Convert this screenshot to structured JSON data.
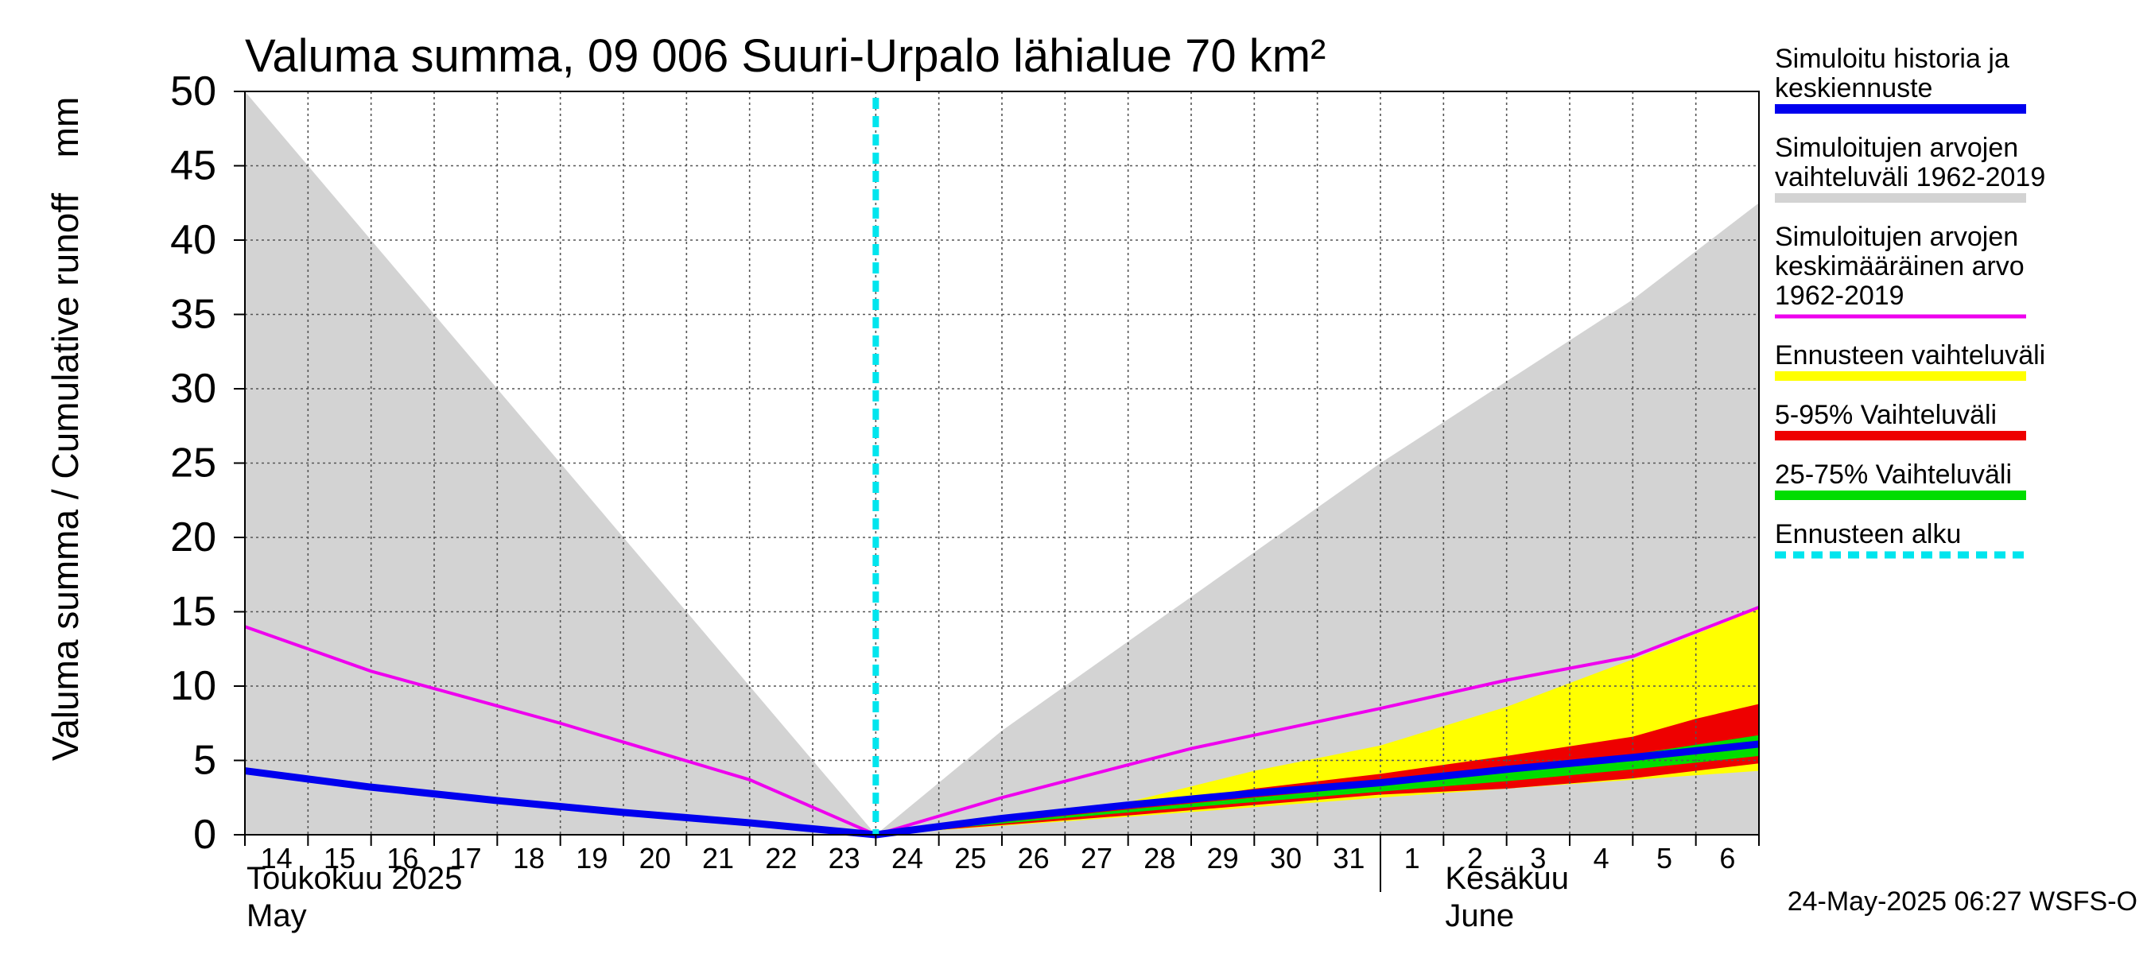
{
  "chart_data": {
    "type": "area",
    "title": "Valuma summa, 09 006 Suuri-Urpalo lähialue 70 km²",
    "ylabel_left": "Valuma summa / Cumulative runoff",
    "ylabel_unit": "mm",
    "ylim": [
      0,
      50
    ],
    "yticks": [
      0,
      5,
      10,
      15,
      20,
      25,
      30,
      35,
      40,
      45,
      50
    ],
    "x_day_labels": [
      "14",
      "15",
      "16",
      "17",
      "18",
      "19",
      "20",
      "21",
      "22",
      "23",
      "24",
      "25",
      "26",
      "27",
      "28",
      "29",
      "30",
      "31",
      "1",
      "2",
      "3",
      "4",
      "5",
      "6"
    ],
    "x_range_days": [
      0,
      24
    ],
    "month_labels": [
      {
        "fi": "Toukokuu  2025",
        "en": "May",
        "day_index": 0
      },
      {
        "fi": "Kesäkuu",
        "en": "June",
        "day_index": 19
      }
    ],
    "month_separator_day": 18,
    "forecast_start_day": 10,
    "grid": true,
    "legend_position": "right",
    "footer": "24-May-2025 06:27 WSFS-O",
    "colors": {
      "history": "#0000ee",
      "range_hist": "#d3d3d3",
      "mean_hist": "#ee00ee",
      "forecast_range": "#ffff00",
      "p5_95": "#ee0000",
      "p25_75": "#00dd00",
      "forecast_start": "#00e5ee"
    },
    "series": [
      {
        "key": "range_hist",
        "name": "Simuloitujen arvojen vaihteluväli 1962-2019",
        "lower": [
          [
            0,
            0
          ],
          [
            24,
            0
          ]
        ],
        "upper": [
          [
            0,
            50
          ],
          [
            5,
            25
          ],
          [
            10,
            0
          ],
          [
            12,
            7
          ],
          [
            14,
            13
          ],
          [
            16,
            19
          ],
          [
            18,
            25
          ],
          [
            20,
            30.5
          ],
          [
            22,
            36
          ],
          [
            24,
            42.5
          ]
        ]
      },
      {
        "key": "mean_hist",
        "name": "Simuloitujen arvojen keskimääräinen arvo 1962-2019",
        "points": [
          [
            0,
            14
          ],
          [
            2,
            11
          ],
          [
            5,
            7.5
          ],
          [
            8,
            3.7
          ],
          [
            10,
            0
          ],
          [
            12,
            2.5
          ],
          [
            15,
            5.8
          ],
          [
            18,
            8.5
          ],
          [
            20,
            10.4
          ],
          [
            22,
            12
          ],
          [
            24,
            15.3
          ]
        ]
      },
      {
        "key": "forecast_range",
        "name": "Ennusteen vaihteluväli",
        "lower": [
          [
            10,
            0
          ],
          [
            14,
            1.2
          ],
          [
            18,
            2.5
          ],
          [
            24,
            4.3
          ]
        ],
        "upper": [
          [
            10,
            0
          ],
          [
            12,
            0.9
          ],
          [
            14,
            2.2
          ],
          [
            16,
            4.3
          ],
          [
            18,
            6
          ],
          [
            20,
            8.6
          ],
          [
            22,
            11.8
          ],
          [
            24,
            15.2
          ]
        ]
      },
      {
        "key": "p5_95",
        "name": "5-95% Vaihteluväli",
        "lower": [
          [
            10,
            0
          ],
          [
            14,
            1.3
          ],
          [
            18,
            2.7
          ],
          [
            20,
            3.1
          ],
          [
            22,
            3.8
          ],
          [
            24,
            4.8
          ]
        ],
        "upper": [
          [
            10,
            0
          ],
          [
            12,
            0.9
          ],
          [
            14,
            1.9
          ],
          [
            16,
            3.1
          ],
          [
            18,
            4.1
          ],
          [
            20,
            5.3
          ],
          [
            22,
            6.6
          ],
          [
            23,
            7.8
          ],
          [
            24,
            8.8
          ]
        ]
      },
      {
        "key": "p25_75",
        "name": "25-75% Vaihteluväli",
        "lower": [
          [
            10,
            0
          ],
          [
            14,
            1.5
          ],
          [
            18,
            2.9
          ],
          [
            20,
            3.6
          ],
          [
            22,
            4.4
          ],
          [
            24,
            5.3
          ]
        ],
        "upper": [
          [
            10,
            0
          ],
          [
            14,
            1.7
          ],
          [
            18,
            3.3
          ],
          [
            20,
            4.3
          ],
          [
            22,
            5.4
          ],
          [
            24,
            6.7
          ]
        ]
      },
      {
        "key": "history",
        "name": "Simuloitu historia ja keskiennuste",
        "points": [
          [
            0,
            4.3
          ],
          [
            2,
            3.2
          ],
          [
            4,
            2.3
          ],
          [
            6,
            1.5
          ],
          [
            8,
            0.8
          ],
          [
            10,
            0
          ],
          [
            12,
            1.1
          ],
          [
            14,
            2.0
          ],
          [
            16,
            2.8
          ],
          [
            18,
            3.5
          ],
          [
            20,
            4.4
          ],
          [
            22,
            5.2
          ],
          [
            24,
            6.1
          ]
        ]
      }
    ],
    "legend": [
      {
        "lines": [
          "Simuloitu historia ja",
          "keskiennuste"
        ],
        "color": "#0000ee",
        "style": "solid"
      },
      {
        "lines": [
          "Simuloitujen arvojen",
          "vaihteluväli 1962-2019"
        ],
        "color": "#d3d3d3",
        "style": "solid"
      },
      {
        "lines": [
          "Simuloitujen arvojen",
          "keskimääräinen arvo",
          "   1962-2019"
        ],
        "color": "#ee00ee",
        "style": "thin"
      },
      {
        "lines": [
          "Ennusteen vaihteluväli"
        ],
        "color": "#ffff00",
        "style": "solid"
      },
      {
        "lines": [
          "5-95% Vaihteluväli"
        ],
        "color": "#ee0000",
        "style": "solid"
      },
      {
        "lines": [
          "25-75% Vaihteluväli"
        ],
        "color": "#00dd00",
        "style": "solid"
      },
      {
        "lines": [
          "Ennusteen alku"
        ],
        "color": "#00e5ee",
        "style": "dashed"
      }
    ]
  }
}
